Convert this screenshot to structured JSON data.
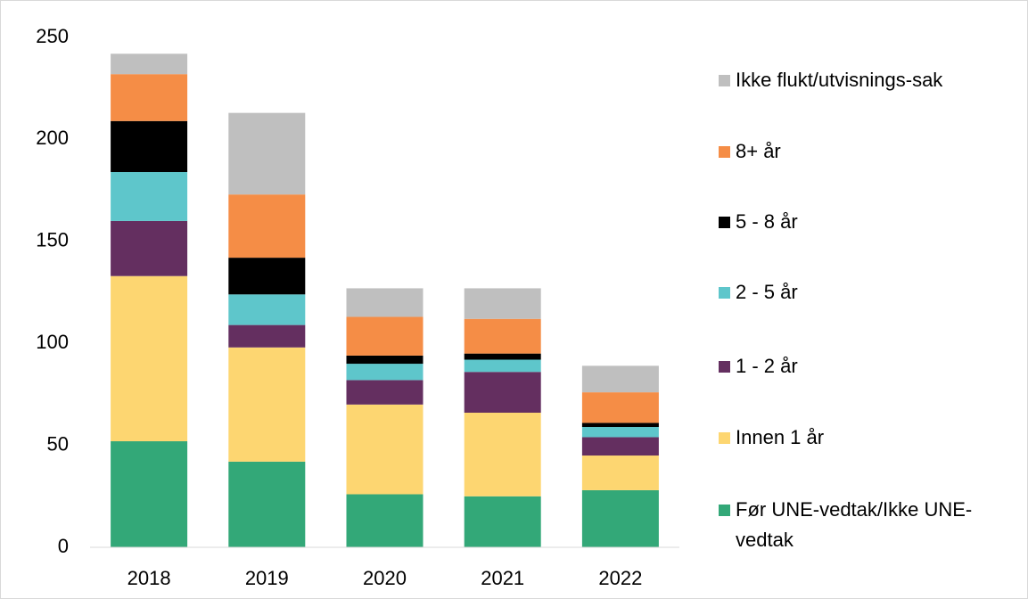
{
  "chart_data": {
    "type": "stacked_bar",
    "categories": [
      "2018",
      "2019",
      "2020",
      "2021",
      "2022"
    ],
    "series": [
      {
        "name": "Før UNE-vedtak/Ikke UNE-vedtak",
        "color": "#33a878",
        "values": [
          52,
          42,
          26,
          25,
          28
        ]
      },
      {
        "name": "Innen 1 år",
        "color": "#fdd671",
        "values": [
          81,
          56,
          44,
          41,
          17
        ]
      },
      {
        "name": "1 - 2 år",
        "color": "#642f60",
        "values": [
          27,
          11,
          12,
          20,
          9
        ]
      },
      {
        "name": "2 - 5 år",
        "color": "#5ec6cb",
        "values": [
          24,
          15,
          8,
          6,
          5
        ]
      },
      {
        "name": "5 - 8 år",
        "color": "#000000",
        "values": [
          25,
          18,
          4,
          3,
          2
        ]
      },
      {
        "name": "8+ år",
        "color": "#f58d46",
        "values": [
          23,
          31,
          19,
          17,
          15
        ]
      },
      {
        "name": "Ikke flukt/utvisnings-sak",
        "color": "#bfbfbf",
        "values": [
          10,
          40,
          14,
          15,
          13
        ]
      }
    ],
    "ylim": [
      0,
      250
    ],
    "yticks": [
      0,
      50,
      100,
      150,
      200,
      250
    ],
    "grid": false,
    "legend": "right"
  }
}
